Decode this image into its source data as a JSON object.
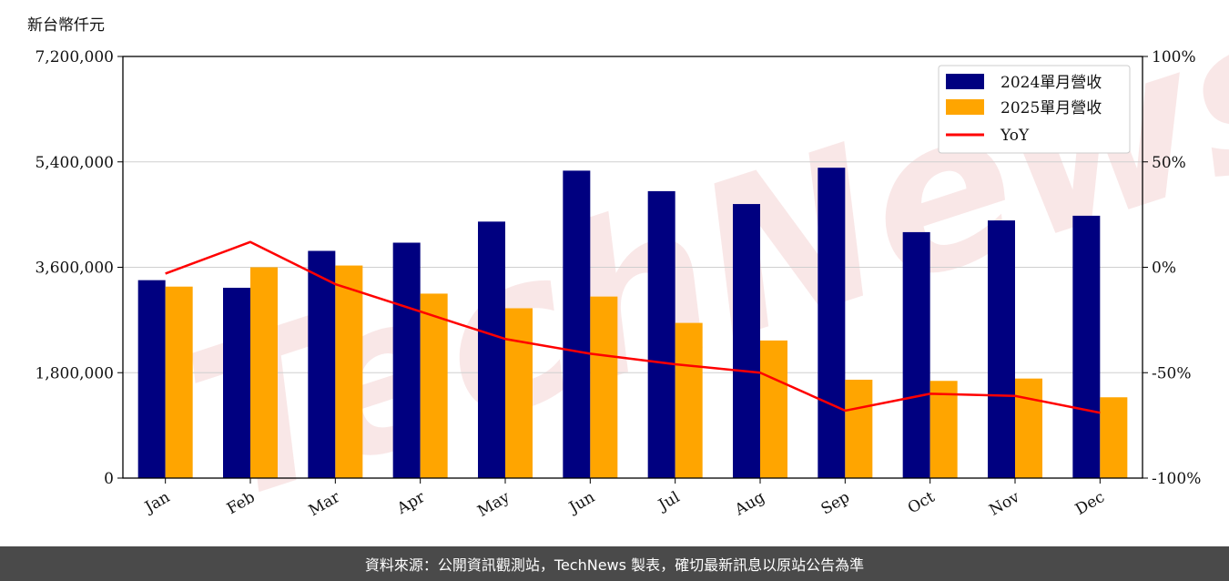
{
  "chart_data": {
    "type": "bar",
    "unit_label": "新台幣仟元",
    "categories": [
      "Jan",
      "Feb",
      "Mar",
      "Apr",
      "May",
      "Jun",
      "Jul",
      "Aug",
      "Sep",
      "Oct",
      "Nov",
      "Dec"
    ],
    "series": [
      {
        "name": "2024單月營收",
        "type": "bar",
        "axis": "left",
        "color": "#000080",
        "values": [
          3380000,
          3250000,
          3880000,
          4020000,
          4380000,
          5250000,
          4900000,
          4680000,
          5300000,
          4200000,
          4400000,
          4480000
        ]
      },
      {
        "name": "2025單月營收",
        "type": "bar",
        "axis": "left",
        "color": "#FFA500",
        "values": [
          3270000,
          3600000,
          3630000,
          3150000,
          2900000,
          3100000,
          2650000,
          2350000,
          1680000,
          1660000,
          1700000,
          1380000
        ]
      },
      {
        "name": "YoY",
        "type": "line",
        "axis": "right",
        "color": "#FF0000",
        "values": [
          -3,
          12,
          -8,
          -21,
          -34,
          -41,
          -46,
          -50,
          -68,
          -60,
          -61,
          -69
        ]
      }
    ],
    "y_left": {
      "min": 0,
      "max": 7200000,
      "ticks": [
        0,
        1800000,
        3600000,
        5400000,
        7200000
      ],
      "tick_labels": [
        "0",
        "1,800,000",
        "3,600,000",
        "5,400,000",
        "7,200,000"
      ]
    },
    "y_right": {
      "min": -100,
      "max": 100,
      "ticks": [
        -100,
        -50,
        0,
        50,
        100
      ],
      "tick_labels": [
        "-100%",
        "-50%",
        "0%",
        "50%",
        "100%"
      ]
    },
    "grid": true,
    "legend_position": "top-right"
  },
  "watermark": "TechNews",
  "footer": {
    "text": "資料來源：公開資訊觀測站，TechNews 製表，確切最新訊息以原站公告為準"
  }
}
